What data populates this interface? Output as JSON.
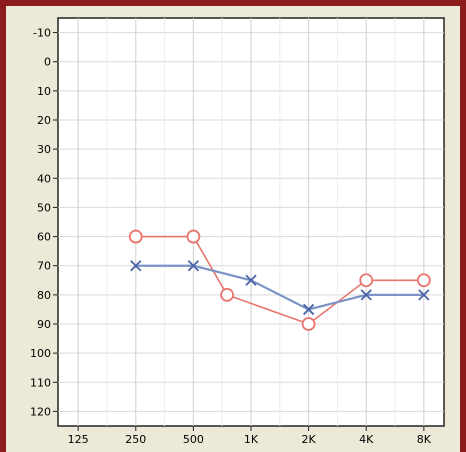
{
  "chart_data": {
    "type": "line",
    "title": "",
    "xlabel": "",
    "ylabel": "",
    "x_ticks": [
      "125",
      "250",
      "500",
      "1K",
      "2K",
      "4K",
      "8K"
    ],
    "y_ticks": [
      -10,
      0,
      10,
      20,
      30,
      40,
      50,
      60,
      70,
      80,
      90,
      100,
      110,
      120
    ],
    "ylim": [
      -15,
      125
    ],
    "y_inverted": true,
    "grid": true,
    "series": [
      {
        "marker": "circle",
        "color": "#e8766e",
        "points": [
          {
            "x": "250",
            "y": 60
          },
          {
            "x": "500",
            "y": 60
          },
          {
            "x": "750",
            "y": 80
          },
          {
            "x": "2K",
            "y": 90
          },
          {
            "x": "4K",
            "y": 75
          },
          {
            "x": "8K",
            "y": 75
          }
        ]
      },
      {
        "marker": "x",
        "color": "#7b93c6",
        "points": [
          {
            "x": "250",
            "y": 70
          },
          {
            "x": "500",
            "y": 70
          },
          {
            "x": "1K",
            "y": 75
          },
          {
            "x": "2K",
            "y": 85
          },
          {
            "x": "4K",
            "y": 80
          },
          {
            "x": "8K",
            "y": 80
          }
        ]
      }
    ]
  }
}
